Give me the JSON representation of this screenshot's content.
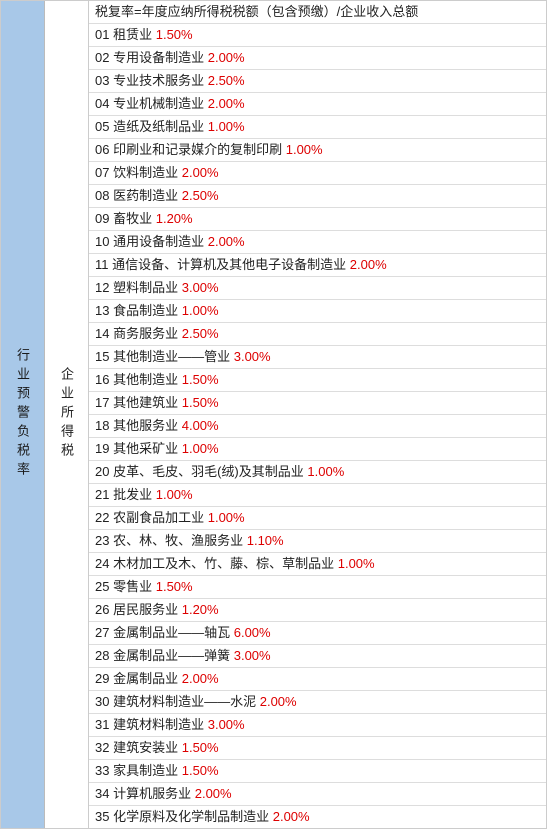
{
  "left_header": "行业预警负税率",
  "mid_header": "企业所得税",
  "formula": "税复率=年度应纳所得税税额（包含预缴）/企业收入总额",
  "rate_color": "#d00",
  "border_color": "#ddd",
  "left_bg": "#a8c8e8",
  "rows": [
    {
      "num": "01",
      "label": "租赁业",
      "rate": "1.50%"
    },
    {
      "num": "02",
      "label": "专用设备制造业",
      "rate": "2.00%"
    },
    {
      "num": "03",
      "label": "专业技术服务业",
      "rate": "2.50%"
    },
    {
      "num": "04",
      "label": "专业机械制造业",
      "rate": "2.00%"
    },
    {
      "num": "05",
      "label": "造纸及纸制品业",
      "rate": "1.00%"
    },
    {
      "num": "06",
      "label": "印刷业和记录媒介的复制印刷",
      "rate": "1.00%"
    },
    {
      "num": "07",
      "label": "饮料制造业",
      "rate": "2.00%"
    },
    {
      "num": "08",
      "label": "医药制造业",
      "rate": "2.50%"
    },
    {
      "num": "09",
      "label": "畜牧业",
      "rate": "1.20%"
    },
    {
      "num": "10",
      "label": "通用设备制造业",
      "rate": "2.00%"
    },
    {
      "num": "11",
      "label": "通信设备、计算机及其他电子设备制造业",
      "rate": "2.00%"
    },
    {
      "num": "12",
      "label": "塑料制品业",
      "rate": "3.00%"
    },
    {
      "num": "13",
      "label": "食品制造业",
      "rate": "1.00%"
    },
    {
      "num": "14",
      "label": "商务服务业",
      "rate": "2.50%"
    },
    {
      "num": "15",
      "label": "其他制造业——管业",
      "rate": "3.00%"
    },
    {
      "num": "16",
      "label": "其他制造业",
      "rate": "1.50%"
    },
    {
      "num": "17",
      "label": "其他建筑业",
      "rate": "1.50%"
    },
    {
      "num": "18",
      "label": "其他服务业",
      "rate": "4.00%"
    },
    {
      "num": "19",
      "label": "其他采矿业",
      "rate": "1.00%"
    },
    {
      "num": "20",
      "label": "皮革、毛皮、羽毛(绒)及其制品业",
      "rate": "1.00%"
    },
    {
      "num": "21",
      "label": "批发业",
      "rate": "1.00%"
    },
    {
      "num": "22",
      "label": "农副食品加工业",
      "rate": "1.00%"
    },
    {
      "num": "23",
      "label": "农、林、牧、渔服务业",
      "rate": "1.10%"
    },
    {
      "num": "24",
      "label": "木材加工及木、竹、藤、棕、草制品业",
      "rate": "1.00%"
    },
    {
      "num": "25",
      "label": "零售业",
      "rate": "1.50%"
    },
    {
      "num": "26",
      "label": "居民服务业",
      "rate": "1.20%"
    },
    {
      "num": "27",
      "label": "金属制品业——轴瓦",
      "rate": "6.00%"
    },
    {
      "num": "28",
      "label": "金属制品业——弹簧",
      "rate": "3.00%"
    },
    {
      "num": "29",
      "label": "金属制品业",
      "rate": "2.00%"
    },
    {
      "num": "30",
      "label": "建筑材料制造业——水泥",
      "rate": "2.00%"
    },
    {
      "num": "31",
      "label": "建筑材料制造业",
      "rate": "3.00%"
    },
    {
      "num": "32",
      "label": "建筑安装业",
      "rate": "1.50%"
    },
    {
      "num": "33",
      "label": "家具制造业",
      "rate": "1.50%"
    },
    {
      "num": "34",
      "label": "计算机服务业",
      "rate": "2.00%"
    },
    {
      "num": "35",
      "label": "化学原料及化学制品制造业",
      "rate": "2.00%"
    }
  ]
}
